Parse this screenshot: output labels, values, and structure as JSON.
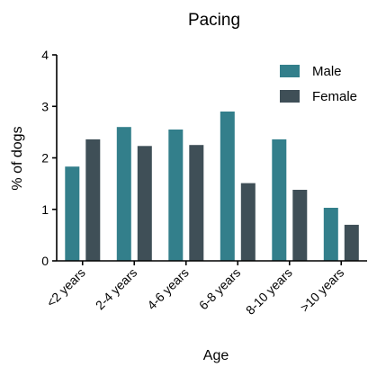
{
  "chart_data": {
    "type": "bar",
    "title": "Pacing",
    "xlabel": "Age",
    "ylabel": "% of dogs",
    "categories": [
      "<2 years",
      "2-4 years",
      "4-6 years",
      "6-8 years",
      "8-10 years",
      ">10 years"
    ],
    "series": [
      {
        "name": "Male",
        "color": "#337f8b",
        "values": [
          1.83,
          2.6,
          2.55,
          2.9,
          2.36,
          1.03
        ]
      },
      {
        "name": "Female",
        "color": "#3f4f57",
        "values": [
          2.36,
          2.23,
          2.25,
          1.51,
          1.38,
          0.7
        ]
      }
    ],
    "ylim": [
      0,
      4
    ],
    "yticks": [
      "0",
      "1",
      "2",
      "3",
      "4"
    ],
    "grid": false,
    "legend_position": "top-right"
  }
}
